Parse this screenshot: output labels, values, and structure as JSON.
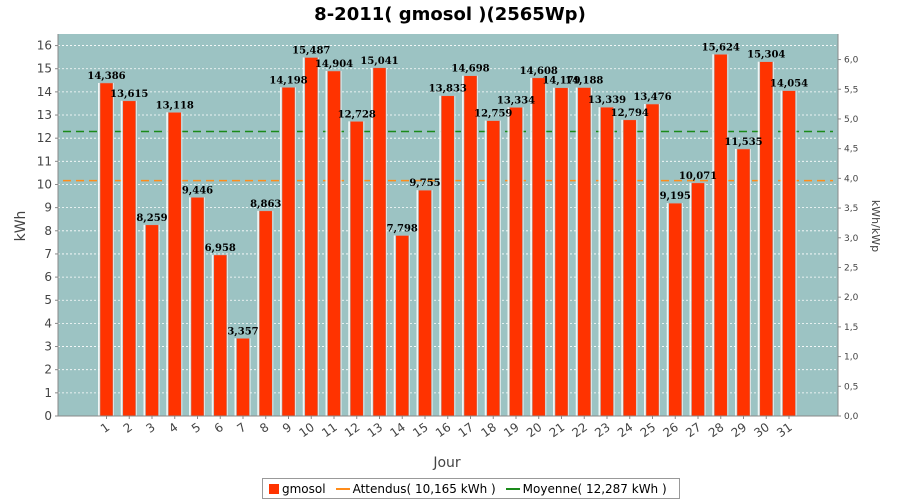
{
  "chart_data": {
    "type": "bar",
    "title": "8-2011( gmosol )(2565Wp)",
    "xlabel": "Jour",
    "ylabel": "kWh",
    "y2label": "kWh/kWp",
    "ylim": [
      0,
      16.5
    ],
    "y2lim": [
      0,
      6.43
    ],
    "yticks": [
      "0",
      "1",
      "2",
      "3",
      "4",
      "5",
      "6",
      "7",
      "8",
      "9",
      "10",
      "11",
      "12",
      "13",
      "14",
      "15",
      "16"
    ],
    "y2ticks": [
      "0,0",
      "0,5",
      "1,0",
      "1,5",
      "2,0",
      "2,5",
      "3,0",
      "3,5",
      "4,0",
      "4,5",
      "5,0",
      "5,5",
      "6,0"
    ],
    "categories": [
      "1",
      "2",
      "3",
      "4",
      "5",
      "6",
      "7",
      "8",
      "9",
      "10",
      "11",
      "12",
      "13",
      "14",
      "15",
      "16",
      "17",
      "18",
      "19",
      "20",
      "21",
      "22",
      "23",
      "24",
      "25",
      "26",
      "27",
      "28",
      "29",
      "30",
      "31"
    ],
    "series": [
      {
        "name": "gmosol",
        "values": [
          14.386,
          13.615,
          8.259,
          13.118,
          9.446,
          6.958,
          3.357,
          8.863,
          14.198,
          15.487,
          14.904,
          12.728,
          15.041,
          7.798,
          9.755,
          13.833,
          14.698,
          12.759,
          13.334,
          14.608,
          14.179,
          14.188,
          13.339,
          12.794,
          13.476,
          9.195,
          10.071,
          15.624,
          11.535,
          15.304,
          14.054
        ],
        "labels": [
          "14,386",
          "13,615",
          "8,259",
          "13,118",
          "9,446",
          "6,958",
          "3,357",
          "8,863",
          "14,198",
          "15,487",
          "14,904",
          "12,728",
          "15,041",
          "7,798",
          "9,755",
          "13,833",
          "14,698",
          "12,759",
          "13,334",
          "14,608",
          "14,179",
          "14,188",
          "13,339",
          "12,794",
          "13,476",
          "9,195",
          "10,071",
          "15,624",
          "11,535",
          "15,304",
          "14,054"
        ],
        "color": "#ff3300"
      }
    ],
    "reference_lines": [
      {
        "name": "Attendus",
        "value": 10.165,
        "color": "#ff8c1a"
      },
      {
        "name": "Moyenne",
        "value": 12.287,
        "color": "#1a8a1a"
      }
    ],
    "plot_background": "#9cc3c3",
    "grid": true,
    "legend": {
      "position": "bottom",
      "entries": [
        "gmosol",
        "Attendus( 10,165 kWh )",
        "Moyenne( 12,287 kWh )"
      ]
    }
  }
}
